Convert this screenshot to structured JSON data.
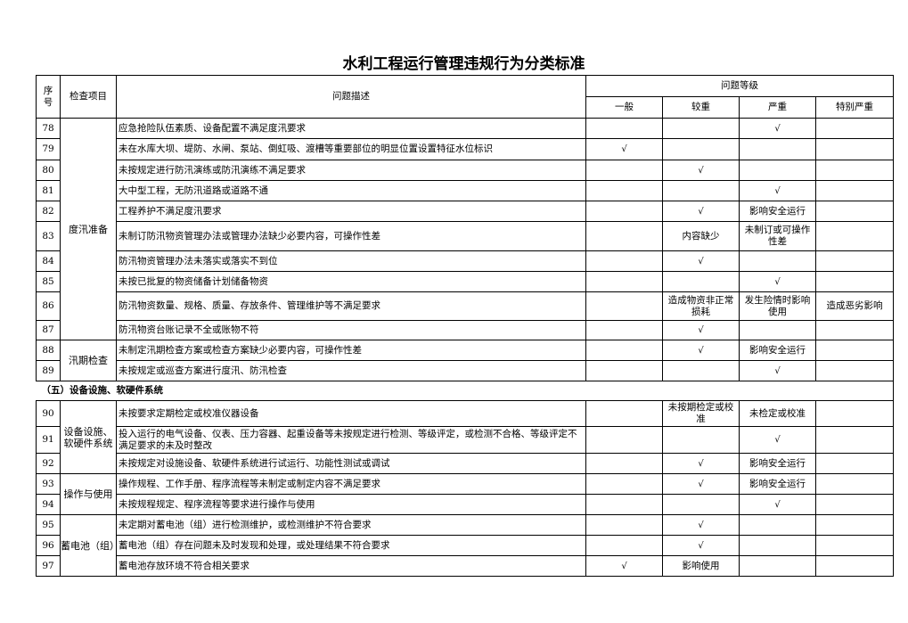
{
  "title": "水利工程运行管理违规行为分类标准",
  "header": {
    "no": "序号",
    "item": "检查项目",
    "desc": "问题描述",
    "level_group": "问题等级",
    "levels": [
      "一般",
      "较重",
      "严重",
      "特别严重"
    ]
  },
  "check_mark": "√",
  "blocks": [
    {
      "type": "groups",
      "groups": [
        {
          "category": "度汛准备",
          "rows": [
            {
              "no": "78",
              "desc": "应急抢险队伍素质、设备配置不满足度汛要求",
              "levels": [
                "",
                "",
                "√",
                ""
              ]
            },
            {
              "no": "79",
              "desc": "未在水库大坝、堤防、水闸、泵站、倒虹吸、渡槽等重要部位的明显位置设置特征水位标识",
              "levels": [
                "√",
                "",
                "",
                ""
              ]
            },
            {
              "no": "80",
              "desc": "未按规定进行防汛演练或防汛演练不满足要求",
              "levels": [
                "",
                "√",
                "",
                ""
              ]
            },
            {
              "no": "81",
              "desc": "大中型工程，无防汛道路或道路不通",
              "levels": [
                "",
                "",
                "√",
                ""
              ]
            },
            {
              "no": "82",
              "desc": "工程养护不满足度汛要求",
              "levels": [
                "",
                "√",
                "影响安全运行",
                ""
              ]
            },
            {
              "no": "83",
              "desc": "未制订防汛物资管理办法或管理办法缺少必要内容，可操作性差",
              "levels": [
                "",
                "内容缺少",
                "未制订或可操作性差",
                ""
              ]
            },
            {
              "no": "84",
              "desc": "防汛物资管理办法未落实或落实不到位",
              "levels": [
                "",
                "√",
                "",
                ""
              ]
            },
            {
              "no": "85",
              "desc": "未按已批复的物资储备计划储备物资",
              "levels": [
                "",
                "",
                "√",
                ""
              ]
            },
            {
              "no": "86",
              "desc": "防汛物资数量、规格、质量、存放条件、管理维护等不满足要求",
              "levels": [
                "",
                "造成物资非正常损耗",
                "发生险情时影响使用",
                "造成恶劣影响"
              ]
            },
            {
              "no": "87",
              "desc": "防汛物资台账记录不全或账物不符",
              "levels": [
                "",
                "√",
                "",
                ""
              ]
            }
          ]
        },
        {
          "category": "汛期检查",
          "rows": [
            {
              "no": "88",
              "desc": "未制定汛期检查方案或检查方案缺少必要内容，可操作性差",
              "levels": [
                "",
                "√",
                "影响安全运行",
                ""
              ]
            },
            {
              "no": "89",
              "desc": "未按规定或巡查方案进行度汛、防汛检查",
              "levels": [
                "",
                "",
                "√",
                ""
              ]
            }
          ]
        }
      ]
    },
    {
      "type": "section",
      "label": "（五）设备设施、软硬件系统"
    },
    {
      "type": "groups",
      "groups": [
        {
          "category": "设备设施、软硬件系统",
          "rows": [
            {
              "no": "90",
              "desc": "未按要求定期检定或校准仪器设备",
              "levels": [
                "",
                "未按期检定或校准",
                "未检定或校准",
                ""
              ]
            },
            {
              "no": "91",
              "desc": "投入运行的电气设备、仪表、压力容器、起重设备等未按规定进行检测、等级评定，或检测不合格、等级评定不满足要求的未及时整改",
              "levels": [
                "",
                "",
                "√",
                ""
              ]
            },
            {
              "no": "92",
              "desc": "未按规定对设施设备、软硬件系统进行试运行、功能性测试或调试",
              "levels": [
                "",
                "√",
                "影响安全运行",
                ""
              ]
            }
          ]
        },
        {
          "category": "操作与使用",
          "rows": [
            {
              "no": "93",
              "desc": "操作规程、工作手册、程序流程等未制定或制定内容不满足要求",
              "levels": [
                "",
                "√",
                "影响安全运行",
                ""
              ]
            },
            {
              "no": "94",
              "desc": "未按规程规定、程序流程等要求进行操作与使用",
              "levels": [
                "",
                "",
                "√",
                ""
              ]
            }
          ]
        },
        {
          "category": "蓄电池（组）",
          "rows": [
            {
              "no": "95",
              "desc": "未定期对蓄电池（组）进行检测维护，或检测维护不符合要求",
              "levels": [
                "",
                "√",
                "",
                ""
              ]
            },
            {
              "no": "96",
              "desc": "蓄电池（组）存在问题未及时发现和处理，或处理结果不符合要求",
              "levels": [
                "",
                "√",
                "",
                ""
              ]
            },
            {
              "no": "97",
              "desc": "蓄电池存放环境不符合相关要求",
              "levels": [
                "√",
                "影响使用",
                "",
                ""
              ]
            }
          ]
        }
      ]
    }
  ]
}
